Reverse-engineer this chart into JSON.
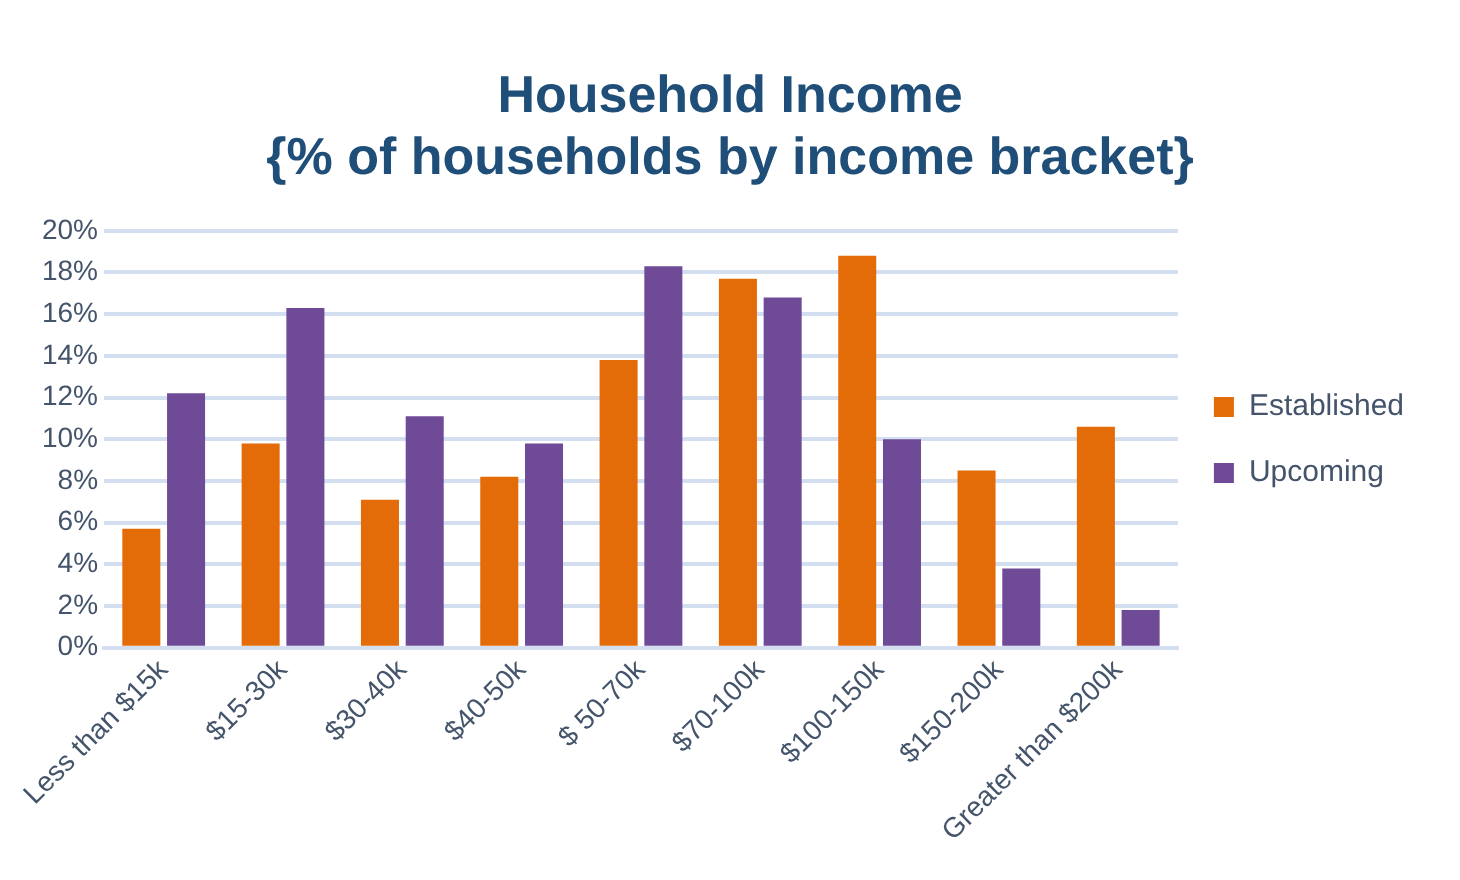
{
  "chart_data": {
    "type": "bar",
    "title": "Household Income",
    "subtitle": "{% of households by income bracket}",
    "categories": [
      "Less than $15k",
      "$15-30k",
      "$30-40k",
      "$40-50k",
      "$ 50-70k",
      "$70-100k",
      "$100-150k",
      "$150-200k",
      "Greater than $200k"
    ],
    "series": [
      {
        "name": "Established",
        "color": "#e36c09",
        "values": [
          5.7,
          9.8,
          7.1,
          8.2,
          13.8,
          17.7,
          18.8,
          8.5,
          10.6
        ]
      },
      {
        "name": "Upcoming",
        "color": "#6f4a96",
        "values": [
          12.2,
          16.3,
          11.1,
          9.8,
          18.3,
          16.8,
          10.0,
          3.8,
          1.8
        ]
      }
    ],
    "ylim": [
      0,
      20
    ],
    "yticks": [
      {
        "value": 0,
        "label": "0%"
      },
      {
        "value": 2,
        "label": "2%"
      },
      {
        "value": 4,
        "label": "4%"
      },
      {
        "value": 6,
        "label": "6%"
      },
      {
        "value": 8,
        "label": "8%"
      },
      {
        "value": 10,
        "label": "10%"
      },
      {
        "value": 12,
        "label": "12%"
      },
      {
        "value": 14,
        "label": "14%"
      },
      {
        "value": 16,
        "label": "16%"
      },
      {
        "value": 18,
        "label": "18%"
      },
      {
        "value": 20,
        "label": "20%"
      }
    ],
    "grid": "y",
    "legend": "right"
  }
}
